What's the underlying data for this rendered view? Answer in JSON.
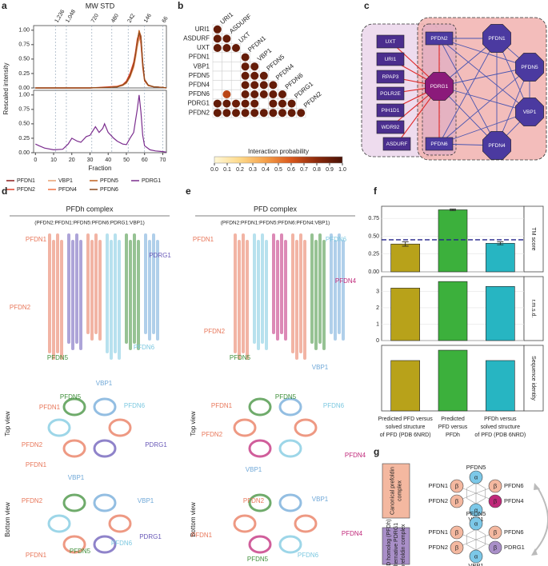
{
  "panels": {
    "a": {
      "label": "a",
      "title": "MW STD",
      "x_label": "Fraction",
      "y_label": "Rescaled intensity",
      "xlim": [
        -1,
        72
      ],
      "ylim": [
        0,
        1.08
      ],
      "yticks": [
        {
          "value": 0,
          "label": "0.00"
        },
        {
          "value": 0.25,
          "label": "0.25"
        },
        {
          "value": 0.5,
          "label": "0.50"
        },
        {
          "value": 0.75,
          "label": "0.75"
        },
        {
          "value": 1,
          "label": "1.00"
        }
      ],
      "xticks": [
        0,
        10,
        20,
        30,
        40,
        50,
        60,
        70
      ],
      "mw_markers": [
        {
          "value": 11,
          "label": "1,236"
        },
        {
          "value": 17,
          "label": "1,048"
        },
        {
          "value": 31,
          "label": "720"
        },
        {
          "value": 42,
          "label": "480"
        },
        {
          "value": 51,
          "label": "242"
        },
        {
          "value": 60,
          "label": "146"
        },
        {
          "value": 70,
          "label": "66"
        }
      ],
      "x_top": [
        0,
        10,
        20,
        30,
        40,
        45,
        48,
        50,
        52,
        54,
        55,
        56,
        57,
        58,
        59,
        60,
        62,
        65,
        70,
        72
      ],
      "x_bottom": [
        0,
        2,
        5,
        10,
        15,
        18,
        20,
        23,
        25,
        28,
        30,
        33,
        35,
        37,
        38,
        40,
        43,
        45,
        48,
        50,
        52,
        54,
        55,
        56,
        57,
        58,
        59,
        60,
        63,
        66,
        70,
        72
      ],
      "series": [
        {
          "name": "PFDN1",
          "color": "#8b1a1a",
          "values": [
            0,
            0,
            0,
            0,
            0.01,
            0.02,
            0.05,
            0.1,
            0.22,
            0.42,
            0.6,
            0.82,
            0.98,
            0.9,
            0.45,
            0.15,
            0.05,
            0.02,
            0.01,
            0
          ]
        },
        {
          "name": "PFDN2",
          "color": "#e0402a",
          "values": [
            0,
            0,
            0,
            0,
            0.02,
            0.03,
            0.06,
            0.12,
            0.25,
            0.45,
            0.62,
            0.85,
            0.95,
            0.75,
            0.35,
            0.12,
            0.04,
            0.02,
            0.01,
            0
          ]
        },
        {
          "name": "VBP1",
          "color": "#e8a070",
          "values": [
            0,
            0,
            0,
            0,
            0.01,
            0.02,
            0.04,
            0.08,
            0.18,
            0.35,
            0.5,
            0.7,
            0.85,
            0.8,
            0.4,
            0.14,
            0.05,
            0.02,
            0.01,
            0
          ]
        },
        {
          "name": "PFDN4",
          "color": "#f07040",
          "values": [
            0,
            0,
            0,
            0,
            0.01,
            0.03,
            0.06,
            0.1,
            0.2,
            0.38,
            0.55,
            0.78,
            0.92,
            0.85,
            0.42,
            0.15,
            0.05,
            0.02,
            0.01,
            0
          ]
        },
        {
          "name": "PFDN5",
          "color": "#c0601e",
          "values": [
            0,
            0,
            0,
            0,
            0.01,
            0.02,
            0.05,
            0.09,
            0.2,
            0.4,
            0.58,
            0.8,
            1.0,
            0.88,
            0.4,
            0.13,
            0.04,
            0.02,
            0.01,
            0
          ]
        },
        {
          "name": "PFDN6",
          "color": "#8c4a1e",
          "values": [
            0,
            0,
            0,
            0,
            0.01,
            0.02,
            0.05,
            0.1,
            0.21,
            0.4,
            0.57,
            0.78,
            0.96,
            0.86,
            0.43,
            0.14,
            0.05,
            0.02,
            0.01,
            0
          ]
        },
        {
          "name": "PDRG1",
          "color": "#7b2d8e",
          "panel": "bottom",
          "values": [
            0.15,
            0.12,
            0.08,
            0.05,
            0.06,
            0.15,
            0.25,
            0.2,
            0.18,
            0.28,
            0.3,
            0.45,
            0.35,
            0.42,
            0.5,
            0.35,
            0.25,
            0.2,
            0.15,
            0.14,
            0.25,
            0.35,
            0.55,
            0.75,
            1.0,
            0.7,
            0.3,
            0.12,
            0.05,
            0.03,
            0.02,
            0.01
          ]
        }
      ]
    },
    "b": {
      "label": "b",
      "colorbar_label": "Interaction probability",
      "colormap": [
        "#fff7d6",
        "#fdd98a",
        "#f5a04a",
        "#d9581c",
        "#8c2a0c",
        "#4a1206"
      ],
      "colorbar_ticks": [
        {
          "value": 0,
          "label": "0.0"
        },
        {
          "value": 0.1,
          "label": "0.1"
        },
        {
          "value": 0.2,
          "label": "0.2"
        },
        {
          "value": 0.3,
          "label": "0.3"
        },
        {
          "value": 0.4,
          "label": "0.4"
        },
        {
          "value": 0.5,
          "label": "0.5"
        },
        {
          "value": 0.6,
          "label": "0.6"
        },
        {
          "value": 0.7,
          "label": "0.7"
        },
        {
          "value": 0.8,
          "label": "0.8"
        },
        {
          "value": 0.9,
          "label": "0.9"
        },
        {
          "value": 1,
          "label": "1.0"
        }
      ],
      "rows": [
        {
          "label": "URI1",
          "values": [
            0.92
          ]
        },
        {
          "label": "ASDURF",
          "values": [
            0.92,
            0.92
          ]
        },
        {
          "label": "UXT",
          "values": [
            0.92,
            0.92,
            0.92
          ]
        },
        {
          "label": "PFDN1",
          "values": [
            null,
            null,
            null,
            0.92
          ]
        },
        {
          "label": "VBP1",
          "values": [
            null,
            null,
            null,
            0.92,
            0.92
          ]
        },
        {
          "label": "PFDN5",
          "values": [
            null,
            null,
            null,
            0.92,
            0.92,
            0.92
          ]
        },
        {
          "label": "PFDN4",
          "values": [
            null,
            null,
            null,
            0.92,
            0.92,
            0.92,
            0.92
          ]
        },
        {
          "label": "PFDN6",
          "values": [
            null,
            0.68,
            null,
            0.92,
            0.92,
            0.92,
            0.92,
            0.92
          ]
        },
        {
          "label": "PDRG1",
          "values": [
            0.92,
            0.92,
            0.9,
            0.92,
            0.92,
            null,
            0.92,
            0.92,
            0.92
          ]
        },
        {
          "label": "PFDN2",
          "values": [
            0.92,
            0.92,
            0.92,
            0.92,
            0.92,
            0.92,
            0.92,
            0.92,
            0.92,
            0.92
          ]
        }
      ]
    },
    "c": {
      "label": "c",
      "nodes": [
        {
          "label": "UXT",
          "shape": "rect",
          "color": "#4b2e8e"
        },
        {
          "label": "URI1",
          "shape": "rect",
          "color": "#4b2e8e"
        },
        {
          "label": "RPAP3",
          "shape": "rect",
          "color": "#4b2e8e"
        },
        {
          "label": "POLR2E",
          "shape": "rect",
          "color": "#4b2e8e"
        },
        {
          "label": "PIH1D1",
          "shape": "rect",
          "color": "#4b2e8e"
        },
        {
          "label": "WDR92",
          "shape": "rect",
          "color": "#4b2e8e"
        },
        {
          "label": "ASDURF",
          "shape": "rect",
          "color": "#4b2e8e"
        },
        {
          "label": "PFDN2",
          "shape": "rect",
          "color": "#4b3aa0"
        },
        {
          "label": "PDRG1",
          "shape": "octagon",
          "color": "#8b1a7a"
        },
        {
          "label": "PFDN6",
          "shape": "rect",
          "color": "#4b3aa0"
        },
        {
          "label": "PFDN1",
          "shape": "octagon",
          "color": "#4b3aa0"
        },
        {
          "label": "PFDN5",
          "shape": "octagon",
          "color": "#4b3aa0"
        },
        {
          "label": "VBP1",
          "shape": "octagon",
          "color": "#4b3aa0"
        },
        {
          "label": "PFDN4",
          "shape": "octagon",
          "color": "#4b3aa0"
        }
      ]
    },
    "d": {
      "label": "d",
      "title": "PFDh complex",
      "subtitle": "(PFDN2:PFDN1:PFDN5:PFDN6:PDRG1:VBP1)",
      "views": [
        "Top view",
        "Bottom view"
      ],
      "labels": [
        "PFDN1",
        "PDRG1",
        "PFDN2",
        "PFDN6",
        "PFDN5",
        "VBP1",
        "PFDN5",
        "PFDN6",
        "PFDN1",
        "PFDN2",
        "PDRG1",
        "PFDN1",
        "VBP1",
        "PFDN2",
        "VBP1",
        "PDRG1",
        "PFDN1",
        "PFDN5",
        "PFDN6"
      ]
    },
    "e": {
      "label": "e",
      "title": "PFD complex",
      "subtitle": "(PFDN2:PFDN1:PFDN5:PFDN6:PFDN4:VBP1)",
      "views": [
        "Top view",
        "Bottom view"
      ],
      "labels": [
        "PFDN1",
        "PFDN6",
        "PFDN4",
        "PFDN2",
        "PFDN5",
        "VBP1",
        "PFDN1",
        "PFDN5",
        "PFDN6",
        "PFDN2",
        "PFDN4",
        "VBP1",
        "PFDN2",
        "VBP1",
        "PFDN1",
        "PFDN4",
        "PFDN5",
        "PFDN6"
      ]
    },
    "protein_colors": {
      "PFDN1": "#e8775a",
      "PFDN2": "#e8775a",
      "PFDN5": "#3f8f3a",
      "PFDN6": "#7cc8e0",
      "VBP1": "#6fa8d8",
      "PDRG1": "#6a5ab8",
      "PFDN4": "#c0287a"
    },
    "f": {
      "label": "f",
      "categories": [
        [
          "Predicted PFD versus",
          "solved structure",
          "of PFD (PDB 6NRD)"
        ],
        [
          "Predicted",
          "PFD versus",
          "PFDh"
        ],
        [
          "PFDh versus",
          "solved structure",
          "of PFD (PDB 6NRD)"
        ]
      ],
      "colors": [
        "#b8a21a",
        "#3cb03c",
        "#27b5c2"
      ],
      "metrics": [
        {
          "name": "TM score",
          "ylim": [
            0,
            0.92
          ],
          "yticks": [
            {
              "value": 0,
              "label": "0.00"
            },
            {
              "value": 0.25,
              "label": "0.25"
            },
            {
              "value": 0.5,
              "label": "0.50"
            },
            {
              "value": 0.75,
              "label": "0.75"
            }
          ],
          "values": [
            0.39,
            0.87,
            0.4
          ],
          "errors": [
            0.03,
            0.01,
            0.02
          ],
          "reference": 0.45
        },
        {
          "name": "r.m.s.d.",
          "ylim": [
            0,
            3.9
          ],
          "yticks": [
            0,
            1,
            2,
            3
          ],
          "values": [
            3.2,
            3.6,
            3.3
          ]
        },
        {
          "name": "Sequence identity",
          "ylim": [
            0,
            0.95
          ],
          "values": [
            0.73,
            0.88,
            0.73
          ]
        }
      ]
    },
    "g": {
      "label": "g",
      "complexes": [
        {
          "name": [
            "Canonical prefoldin",
            "complex"
          ],
          "color": "#f4b8a0",
          "subunits": [
            {
              "name": "PFDN5",
              "type": "α",
              "color": "#7cc8e8"
            },
            {
              "name": "PFDN1",
              "type": "β",
              "color": "#f4b8a0"
            },
            {
              "name": "PFDN2",
              "type": "β",
              "color": "#f4b8a0"
            },
            {
              "name": "PFDN6",
              "type": "β",
              "color": "#f4b8a0"
            },
            {
              "name": "PFDN4",
              "type": "β",
              "color": "#c0287a"
            },
            {
              "name": "VBP1",
              "type": "α",
              "color": "#7cc8e8"
            }
          ]
        },
        {
          "name": [
            "PFD homolog (PFDh)",
            "alternative PDRG1",
            "prefoldin complex"
          ],
          "color": "#a98fc8",
          "subunits": [
            {
              "name": "PFDN5",
              "type": "α",
              "color": "#7cc8e8"
            },
            {
              "name": "PFDN1",
              "type": "β",
              "color": "#f4b8a0"
            },
            {
              "name": "PFDN2",
              "type": "β",
              "color": "#f4b8a0"
            },
            {
              "name": "PFDN6",
              "type": "β",
              "color": "#f4b8a0"
            },
            {
              "name": "PDRG1",
              "type": "β",
              "color": "#a98fc8"
            },
            {
              "name": "VBP1",
              "type": "α",
              "color": "#7cc8e8"
            }
          ]
        }
      ]
    }
  }
}
